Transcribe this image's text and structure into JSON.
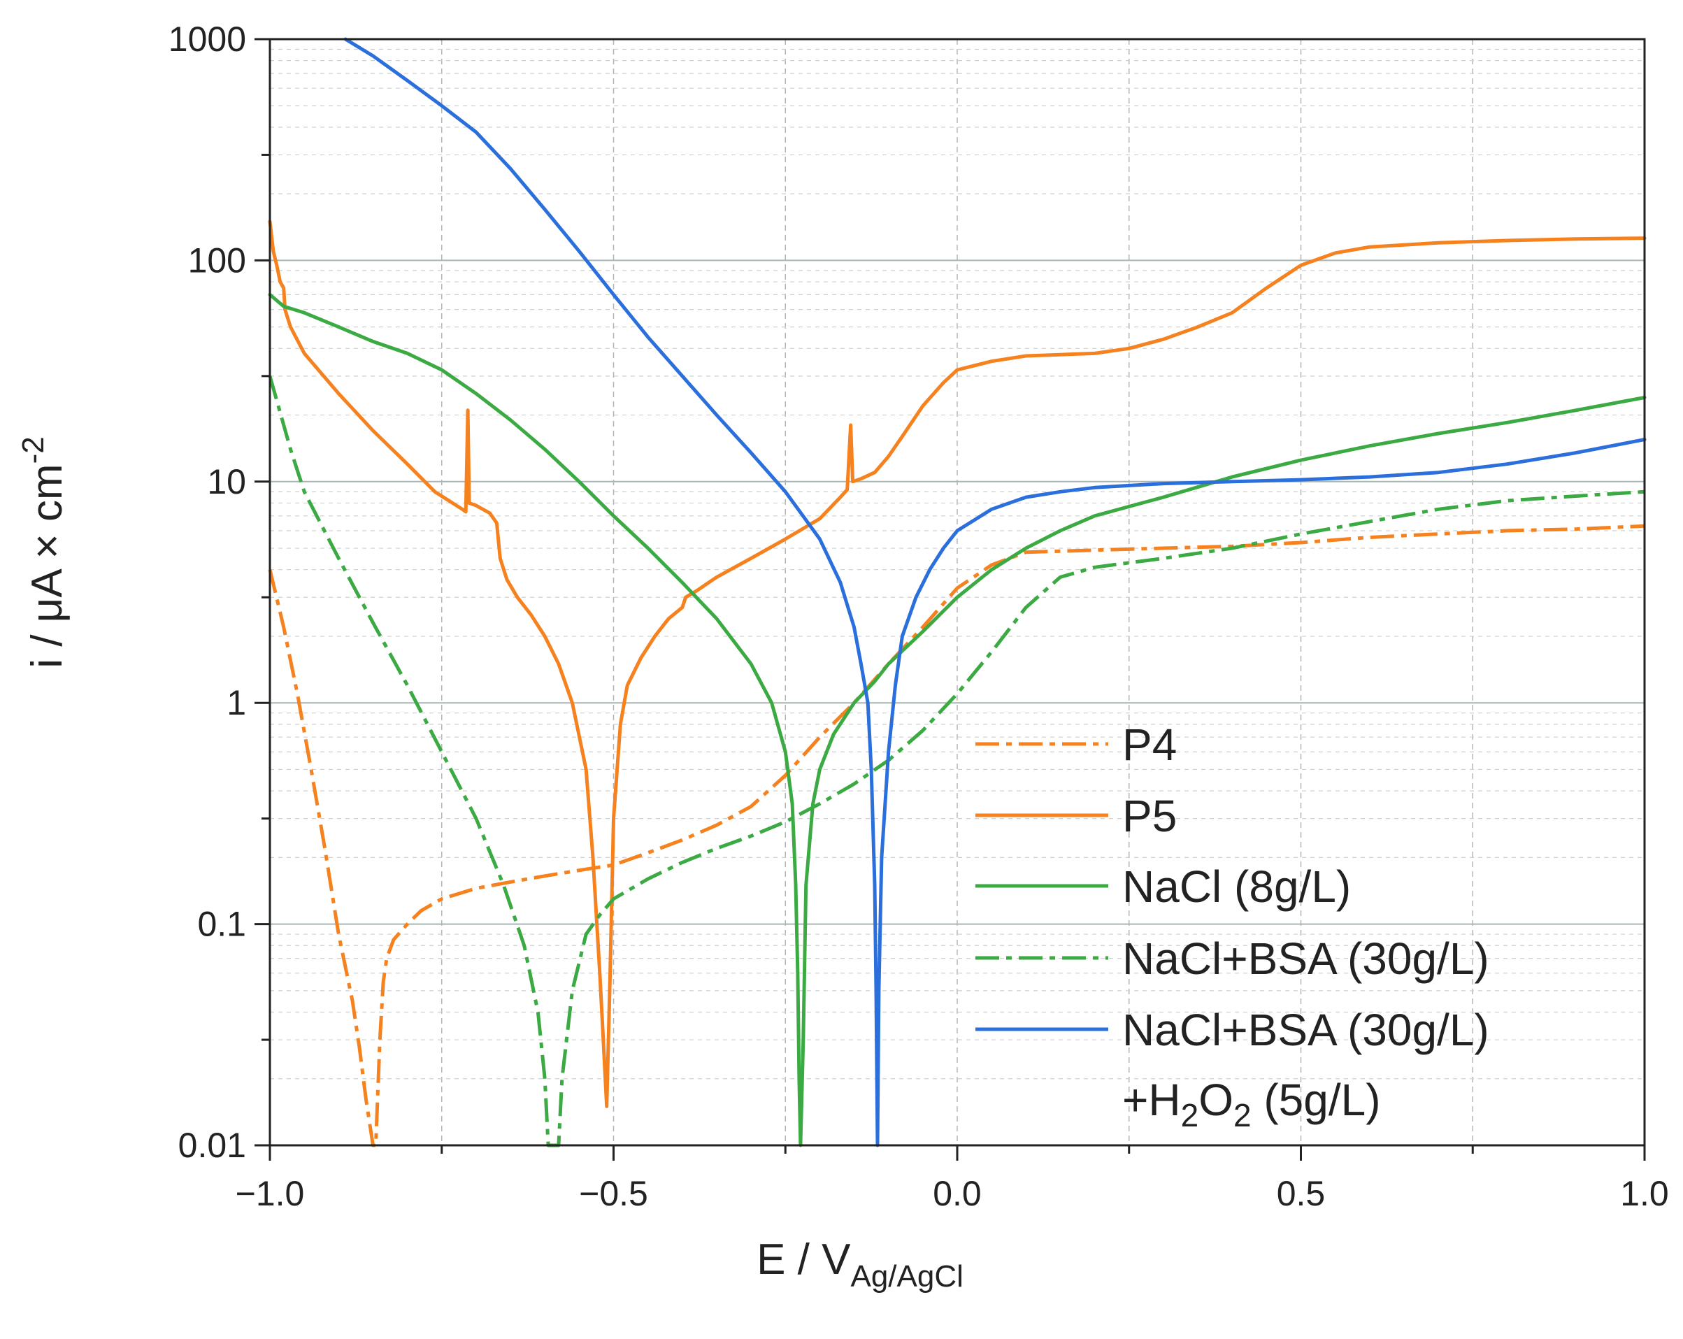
{
  "chart_data": {
    "type": "line",
    "title": "",
    "xlabel": "E / V",
    "xlabel_sub": "Ag/AgCl",
    "ylabel": "i / μA × cm",
    "ylabel_sup": "-2",
    "xscale": "linear",
    "yscale": "log",
    "xlim": [
      -1.0,
      1.0
    ],
    "ylim": [
      0.01,
      1000
    ],
    "grid": true,
    "legend_position": "lower-right",
    "x_ticks": [
      {
        "value": -1.0,
        "label": "−1.0"
      },
      {
        "value": -0.5,
        "label": "−0.5"
      },
      {
        "value": 0.0,
        "label": "0.0"
      },
      {
        "value": 0.5,
        "label": "0.5"
      },
      {
        "value": 1.0,
        "label": "1.0"
      }
    ],
    "y_ticks": [
      {
        "value": 0.01,
        "label": "0.01"
      },
      {
        "value": 0.1,
        "label": "0.1"
      },
      {
        "value": 1,
        "label": "1"
      },
      {
        "value": 10,
        "label": "10"
      },
      {
        "value": 100,
        "label": "100"
      },
      {
        "value": 1000,
        "label": "1000"
      }
    ],
    "series": [
      {
        "name": "P4",
        "color": "#F5821F",
        "style": "dashdot",
        "points": [
          [
            -1.0,
            4.0
          ],
          [
            -0.98,
            2.2
          ],
          [
            -0.96,
            1.1
          ],
          [
            -0.94,
            0.5
          ],
          [
            -0.92,
            0.22
          ],
          [
            -0.9,
            0.09
          ],
          [
            -0.88,
            0.045
          ],
          [
            -0.87,
            0.028
          ],
          [
            -0.86,
            0.016
          ],
          [
            -0.85,
            0.01
          ],
          [
            -0.846,
            0.01
          ],
          [
            -0.84,
            0.03
          ],
          [
            -0.835,
            0.055
          ],
          [
            -0.83,
            0.07
          ],
          [
            -0.82,
            0.085
          ],
          [
            -0.8,
            0.1
          ],
          [
            -0.78,
            0.115
          ],
          [
            -0.75,
            0.13
          ],
          [
            -0.7,
            0.145
          ],
          [
            -0.65,
            0.155
          ],
          [
            -0.6,
            0.165
          ],
          [
            -0.55,
            0.175
          ],
          [
            -0.5,
            0.185
          ],
          [
            -0.45,
            0.21
          ],
          [
            -0.4,
            0.24
          ],
          [
            -0.35,
            0.28
          ],
          [
            -0.3,
            0.34
          ],
          [
            -0.25,
            0.47
          ],
          [
            -0.2,
            0.7
          ],
          [
            -0.15,
            1.0
          ],
          [
            -0.1,
            1.5
          ],
          [
            -0.05,
            2.2
          ],
          [
            0.0,
            3.3
          ],
          [
            0.05,
            4.2
          ],
          [
            0.1,
            4.8
          ],
          [
            0.2,
            4.9
          ],
          [
            0.3,
            5.0
          ],
          [
            0.4,
            5.1
          ],
          [
            0.5,
            5.3
          ],
          [
            0.6,
            5.6
          ],
          [
            0.7,
            5.8
          ],
          [
            0.8,
            6.0
          ],
          [
            0.9,
            6.1
          ],
          [
            1.0,
            6.3
          ]
        ]
      },
      {
        "name": "P5",
        "color": "#F5821F",
        "style": "solid",
        "points": [
          [
            -1.0,
            150
          ],
          [
            -0.995,
            110
          ],
          [
            -0.99,
            95
          ],
          [
            -0.985,
            80
          ],
          [
            -0.98,
            75
          ],
          [
            -0.978,
            60
          ],
          [
            -0.97,
            50
          ],
          [
            -0.95,
            38
          ],
          [
            -0.9,
            25
          ],
          [
            -0.85,
            17
          ],
          [
            -0.8,
            12
          ],
          [
            -0.76,
            9.0
          ],
          [
            -0.72,
            7.5
          ],
          [
            -0.715,
            7.3
          ],
          [
            -0.712,
            21.0
          ],
          [
            -0.71,
            8.0
          ],
          [
            -0.7,
            7.8
          ],
          [
            -0.68,
            7.2
          ],
          [
            -0.67,
            6.5
          ],
          [
            -0.665,
            4.5
          ],
          [
            -0.655,
            3.6
          ],
          [
            -0.64,
            3.0
          ],
          [
            -0.62,
            2.5
          ],
          [
            -0.6,
            2.0
          ],
          [
            -0.58,
            1.5
          ],
          [
            -0.56,
            1.0
          ],
          [
            -0.54,
            0.5
          ],
          [
            -0.53,
            0.2
          ],
          [
            -0.52,
            0.06
          ],
          [
            -0.515,
            0.03
          ],
          [
            -0.51,
            0.015
          ],
          [
            -0.505,
            0.06
          ],
          [
            -0.5,
            0.3
          ],
          [
            -0.49,
            0.8
          ],
          [
            -0.48,
            1.2
          ],
          [
            -0.46,
            1.6
          ],
          [
            -0.44,
            2.0
          ],
          [
            -0.42,
            2.4
          ],
          [
            -0.4,
            2.7
          ],
          [
            -0.395,
            3.0
          ],
          [
            -0.38,
            3.2
          ],
          [
            -0.35,
            3.7
          ],
          [
            -0.3,
            4.5
          ],
          [
            -0.25,
            5.5
          ],
          [
            -0.2,
            6.8
          ],
          [
            -0.17,
            8.5
          ],
          [
            -0.16,
            9.2
          ],
          [
            -0.155,
            18.0
          ],
          [
            -0.152,
            10.0
          ],
          [
            -0.14,
            10.3
          ],
          [
            -0.12,
            11.0
          ],
          [
            -0.1,
            13.0
          ],
          [
            -0.08,
            16.0
          ],
          [
            -0.05,
            22.0
          ],
          [
            -0.02,
            28.0
          ],
          [
            0.0,
            32.0
          ],
          [
            0.05,
            35.0
          ],
          [
            0.1,
            37.0
          ],
          [
            0.15,
            37.5
          ],
          [
            0.2,
            38.0
          ],
          [
            0.25,
            40.0
          ],
          [
            0.3,
            44.0
          ],
          [
            0.35,
            50.0
          ],
          [
            0.4,
            58.0
          ],
          [
            0.45,
            75.0
          ],
          [
            0.5,
            95.0
          ],
          [
            0.55,
            108.0
          ],
          [
            0.6,
            115.0
          ],
          [
            0.7,
            120.0
          ],
          [
            0.8,
            123.0
          ],
          [
            0.9,
            125.0
          ],
          [
            1.0,
            126.0
          ]
        ]
      },
      {
        "name": "NaCl (8g/L)",
        "color": "#3BAA43",
        "style": "solid",
        "points": [
          [
            -1.0,
            70
          ],
          [
            -0.98,
            62
          ],
          [
            -0.95,
            58
          ],
          [
            -0.9,
            50
          ],
          [
            -0.85,
            43
          ],
          [
            -0.8,
            38
          ],
          [
            -0.75,
            32
          ],
          [
            -0.7,
            25
          ],
          [
            -0.65,
            19
          ],
          [
            -0.6,
            14
          ],
          [
            -0.55,
            10
          ],
          [
            -0.5,
            7.0
          ],
          [
            -0.45,
            5.0
          ],
          [
            -0.4,
            3.5
          ],
          [
            -0.35,
            2.4
          ],
          [
            -0.3,
            1.5
          ],
          [
            -0.27,
            1.0
          ],
          [
            -0.25,
            0.6
          ],
          [
            -0.24,
            0.35
          ],
          [
            -0.235,
            0.15
          ],
          [
            -0.232,
            0.06
          ],
          [
            -0.23,
            0.02
          ],
          [
            -0.228,
            0.01
          ],
          [
            -0.224,
            0.03
          ],
          [
            -0.22,
            0.15
          ],
          [
            -0.21,
            0.35
          ],
          [
            -0.2,
            0.5
          ],
          [
            -0.18,
            0.72
          ],
          [
            -0.15,
            1.0
          ],
          [
            -0.12,
            1.25
          ],
          [
            -0.1,
            1.5
          ],
          [
            -0.05,
            2.1
          ],
          [
            0.0,
            3.0
          ],
          [
            0.05,
            4.0
          ],
          [
            0.1,
            5.0
          ],
          [
            0.15,
            6.0
          ],
          [
            0.2,
            7.0
          ],
          [
            0.3,
            8.5
          ],
          [
            0.4,
            10.5
          ],
          [
            0.5,
            12.5
          ],
          [
            0.6,
            14.5
          ],
          [
            0.7,
            16.5
          ],
          [
            0.8,
            18.5
          ],
          [
            0.9,
            21.0
          ],
          [
            1.0,
            24.0
          ]
        ]
      },
      {
        "name": "NaCl+BSA (30g/L)",
        "color": "#3BAA43",
        "style": "dashdot",
        "points": [
          [
            -1.0,
            30
          ],
          [
            -0.97,
            14
          ],
          [
            -0.95,
            9.0
          ],
          [
            -0.9,
            4.5
          ],
          [
            -0.85,
            2.3
          ],
          [
            -0.8,
            1.2
          ],
          [
            -0.75,
            0.6
          ],
          [
            -0.7,
            0.3
          ],
          [
            -0.66,
            0.15
          ],
          [
            -0.63,
            0.08
          ],
          [
            -0.61,
            0.04
          ],
          [
            -0.6,
            0.02
          ],
          [
            -0.595,
            0.01
          ],
          [
            -0.58,
            0.01
          ],
          [
            -0.575,
            0.02
          ],
          [
            -0.56,
            0.05
          ],
          [
            -0.54,
            0.09
          ],
          [
            -0.52,
            0.11
          ],
          [
            -0.5,
            0.13
          ],
          [
            -0.45,
            0.16
          ],
          [
            -0.4,
            0.19
          ],
          [
            -0.35,
            0.22
          ],
          [
            -0.3,
            0.25
          ],
          [
            -0.25,
            0.29
          ],
          [
            -0.2,
            0.35
          ],
          [
            -0.15,
            0.43
          ],
          [
            -0.1,
            0.55
          ],
          [
            -0.05,
            0.75
          ],
          [
            0.0,
            1.1
          ],
          [
            0.05,
            1.7
          ],
          [
            0.1,
            2.7
          ],
          [
            0.15,
            3.7
          ],
          [
            0.2,
            4.1
          ],
          [
            0.3,
            4.5
          ],
          [
            0.4,
            5.0
          ],
          [
            0.5,
            5.8
          ],
          [
            0.6,
            6.6
          ],
          [
            0.7,
            7.5
          ],
          [
            0.8,
            8.2
          ],
          [
            0.9,
            8.6
          ],
          [
            1.0,
            9.0
          ]
        ]
      },
      {
        "name": "NaCl+BSA (30g/L)+H₂O₂ (5g/L)",
        "color": "#2A6FDB",
        "style": "solid",
        "points": [
          [
            -0.89,
            1000
          ],
          [
            -0.85,
            840
          ],
          [
            -0.8,
            650
          ],
          [
            -0.75,
            500
          ],
          [
            -0.7,
            380
          ],
          [
            -0.65,
            260
          ],
          [
            -0.6,
            170
          ],
          [
            -0.55,
            110
          ],
          [
            -0.5,
            70
          ],
          [
            -0.45,
            45
          ],
          [
            -0.4,
            30
          ],
          [
            -0.35,
            20
          ],
          [
            -0.3,
            13.5
          ],
          [
            -0.25,
            9.0
          ],
          [
            -0.2,
            5.5
          ],
          [
            -0.17,
            3.5
          ],
          [
            -0.15,
            2.2
          ],
          [
            -0.14,
            1.5
          ],
          [
            -0.13,
            1.0
          ],
          [
            -0.125,
            0.5
          ],
          [
            -0.12,
            0.15
          ],
          [
            -0.118,
            0.05
          ],
          [
            -0.116,
            0.01
          ],
          [
            -0.114,
            0.05
          ],
          [
            -0.11,
            0.2
          ],
          [
            -0.1,
            0.6
          ],
          [
            -0.09,
            1.2
          ],
          [
            -0.08,
            2.0
          ],
          [
            -0.06,
            3.0
          ],
          [
            -0.04,
            4.0
          ],
          [
            -0.02,
            5.0
          ],
          [
            0.0,
            6.0
          ],
          [
            0.05,
            7.5
          ],
          [
            0.1,
            8.5
          ],
          [
            0.15,
            9.0
          ],
          [
            0.2,
            9.4
          ],
          [
            0.3,
            9.8
          ],
          [
            0.4,
            10.0
          ],
          [
            0.5,
            10.2
          ],
          [
            0.6,
            10.5
          ],
          [
            0.7,
            11.0
          ],
          [
            0.8,
            12.0
          ],
          [
            0.9,
            13.5
          ],
          [
            1.0,
            15.5
          ]
        ]
      }
    ],
    "legend": [
      {
        "label": "P4",
        "color": "#F5821F",
        "style": "dashdot"
      },
      {
        "label": "P5",
        "color": "#F5821F",
        "style": "solid"
      },
      {
        "label": "NaCl (8g/L)",
        "color": "#3BAA43",
        "style": "solid"
      },
      {
        "label": "NaCl+BSA (30g/L)",
        "color": "#3BAA43",
        "style": "dashdot"
      },
      {
        "label": "NaCl+BSA (30g/L)",
        "label_line2_prefix": "+H",
        "label_line2_sub1": "2",
        "label_line2_mid": "O",
        "label_line2_sub2": "2",
        "label_line2_suffix": " (5g/L)",
        "color": "#2A6FDB",
        "style": "solid"
      }
    ]
  }
}
